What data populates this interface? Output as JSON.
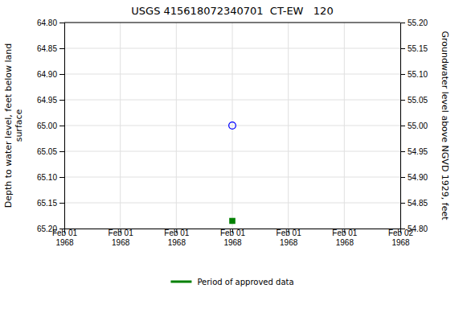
{
  "chart_data": {
    "type": "scatter",
    "title": "USGS 415618072340701  CT-EW   120",
    "y_label": "Depth to water level, feet below land\nsurface",
    "y2_label": "Groundwater level above NGVD 1929, feet",
    "categories": [
      "Feb 01\n1968",
      "Feb 01\n1968",
      "Feb 01\n1968",
      "Feb 01\n1968",
      "Feb 01\n1968",
      "Feb 01\n1968",
      "Feb 02\n1968"
    ],
    "ylim": [
      65.2,
      64.8
    ],
    "yticks": [
      {
        "value": 64.8,
        "label": "64.80"
      },
      {
        "value": 64.85,
        "label": "64.85"
      },
      {
        "value": 64.9,
        "label": "64.90"
      },
      {
        "value": 64.95,
        "label": "64.95"
      },
      {
        "value": 65.0,
        "label": "65.00"
      },
      {
        "value": 65.05,
        "label": "65.05"
      },
      {
        "value": 65.1,
        "label": "65.10"
      },
      {
        "value": 65.15,
        "label": "65.15"
      },
      {
        "value": 65.2,
        "label": "65.20"
      }
    ],
    "y2lim": [
      54.8,
      55.2
    ],
    "y2ticks": [
      {
        "value": 55.2,
        "label": "55.20"
      },
      {
        "value": 55.15,
        "label": "55.15"
      },
      {
        "value": 55.1,
        "label": "55.10"
      },
      {
        "value": 55.05,
        "label": "55.05"
      },
      {
        "value": 55.0,
        "label": "55.00"
      },
      {
        "value": 54.95,
        "label": "54.95"
      },
      {
        "value": 54.9,
        "label": "54.90"
      },
      {
        "value": 54.85,
        "label": "54.85"
      },
      {
        "value": 54.8,
        "label": "54.80"
      }
    ],
    "series": [
      {
        "color": "blue",
        "marker": "circle",
        "values": [
          null,
          null,
          null,
          65.0,
          null,
          null,
          null
        ]
      },
      {
        "name": "Period of approved data",
        "color": "green",
        "marker": "square",
        "values": [
          null,
          null,
          null,
          65.185,
          null,
          null,
          null
        ]
      }
    ],
    "grid": true,
    "legend": "bottom"
  }
}
